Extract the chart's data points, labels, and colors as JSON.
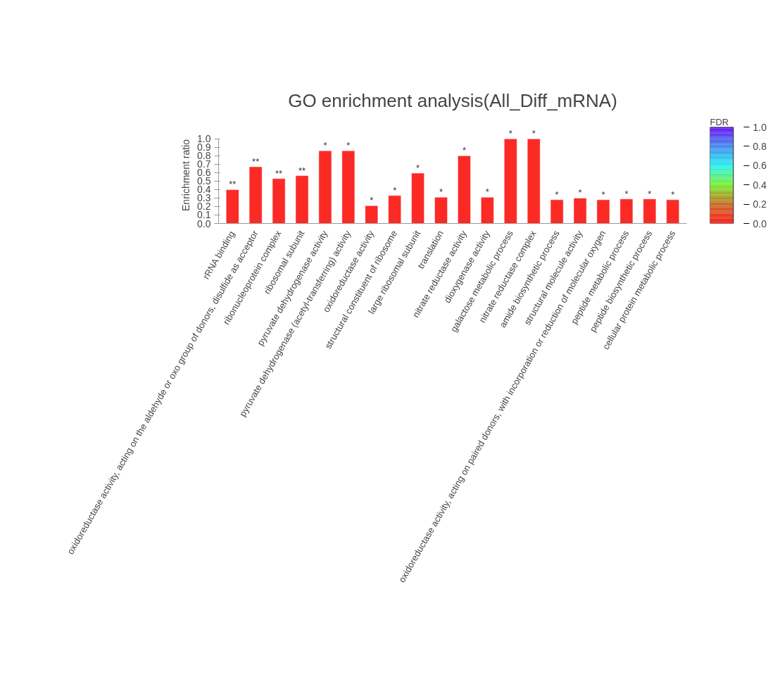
{
  "chart_data": {
    "type": "bar",
    "title": "GO enrichment analysis(All_Diff_mRNA)",
    "ylabel": "Enrichment ratio",
    "clabel": "FDR",
    "categories": [
      "rRNA binding",
      "oxidoreductase activity, acting on the aldehyde or oxo group of donors, disulfide as acceptor",
      "ribonucleoprotein complex",
      "ribosomal subunit",
      "pyruvate dehydrogenase activity",
      "pyruvate dehydrogenase (acetyl-transferring) activity",
      "oxidoreductase activity",
      "structural constituent of ribosome",
      "large ribosomal subunit",
      "translation",
      "nitrate reductase activity",
      "dioxygenase activity",
      "galactose metabolic process",
      "nitrate reductase complex",
      "amide biosynthetic process",
      "structural molecule activity",
      "oxidoreductase activity, acting on paired donors, with incorporation or reduction of molecular oxygen",
      "peptide metabolic process",
      "peptide biosynthetic process",
      "cellular protein metabolic process"
    ],
    "values": [
      0.4,
      0.67,
      0.53,
      0.565,
      0.86,
      0.86,
      0.21,
      0.33,
      0.595,
      0.31,
      0.8,
      0.31,
      1.0,
      1.0,
      0.28,
      0.3,
      0.28,
      0.29,
      0.29,
      0.28
    ],
    "value_labels": [
      "**",
      "**",
      "**",
      "**",
      "*",
      "*",
      "*",
      "*",
      "*",
      "*",
      "*",
      "*",
      "*",
      "*",
      "*",
      "*",
      "*",
      "*",
      "*",
      "*"
    ],
    "color": "#fb2a25",
    "ylim": [
      0,
      1.0
    ],
    "yticks": [
      {
        "value": 0,
        "label": "0.0"
      },
      0.1,
      0.2,
      0.3,
      0.4,
      0.5,
      0.6,
      0.7,
      0.8,
      0.9,
      {
        "value": 1.0,
        "label": "1.0"
      }
    ],
    "clim": [
      0,
      1.0
    ],
    "cticks": [
      {
        "value": 0,
        "label": "0.0"
      },
      0.2,
      0.4,
      0.6,
      0.8,
      {
        "value": 1.0,
        "label": "1.0"
      }
    ],
    "grid": false
  }
}
